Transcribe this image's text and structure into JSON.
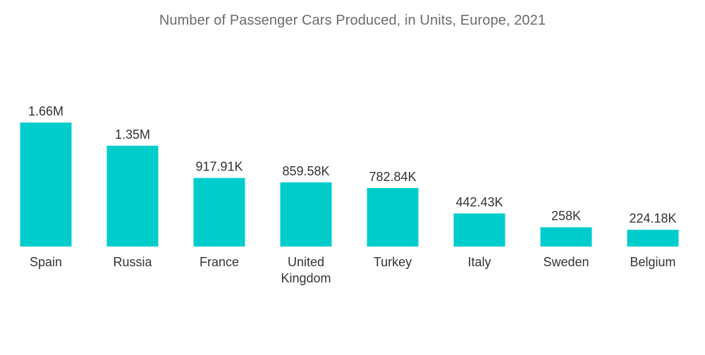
{
  "chart_data": {
    "type": "bar",
    "title": "Number of Passenger Cars Produced, in Units, Europe, 2021",
    "xlabel": "",
    "ylabel": "",
    "categories": [
      "Spain",
      "Russia",
      "France",
      "United Kingdom",
      "Turkey",
      "Italy",
      "Sweden",
      "Belgium"
    ],
    "category_lines": [
      [
        "Spain"
      ],
      [
        "Russia"
      ],
      [
        "France"
      ],
      [
        "United",
        "Kingdom"
      ],
      [
        "Turkey"
      ],
      [
        "Italy"
      ],
      [
        "Sweden"
      ],
      [
        "Belgium"
      ]
    ],
    "values": [
      1660000,
      1350000,
      917910,
      859580,
      782840,
      442430,
      258000,
      224180
    ],
    "value_labels": [
      "1.66M",
      "1.35M",
      "917.91K",
      "859.58K",
      "782.84K",
      "442.43K",
      "258K",
      "224.18K"
    ],
    "ylim": [
      0,
      1660000
    ],
    "grid": false,
    "legend": "none",
    "colors": {
      "bar": "#00cccc",
      "title": "#6b6b6b",
      "text": "#333333"
    }
  }
}
